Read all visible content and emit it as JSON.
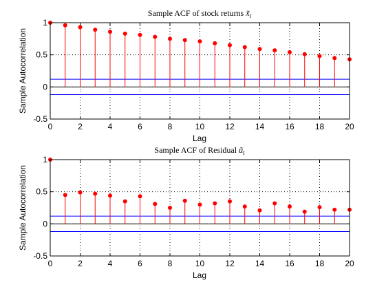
{
  "chart_data": [
    {
      "type": "stem",
      "title": "Sample ACF of stock returns",
      "title_symbol": "x̃",
      "title_subscript": "t",
      "xlabel": "Lag",
      "ylabel": "Sample Autocorrelation",
      "xlim": [
        0,
        20
      ],
      "ylim": [
        -0.5,
        1
      ],
      "xticks": [
        "0",
        "2",
        "4",
        "6",
        "8",
        "10",
        "12",
        "14",
        "16",
        "18",
        "20"
      ],
      "yticks": [
        "-0.5",
        "0",
        "0.5",
        "1"
      ],
      "grid": true,
      "grid_style": "dotted",
      "x": [
        0,
        1,
        2,
        3,
        4,
        5,
        6,
        7,
        8,
        9,
        10,
        11,
        12,
        13,
        14,
        15,
        16,
        17,
        18,
        19,
        20
      ],
      "values": [
        1.0,
        0.96,
        0.93,
        0.89,
        0.86,
        0.83,
        0.81,
        0.78,
        0.75,
        0.73,
        0.71,
        0.68,
        0.65,
        0.62,
        0.59,
        0.57,
        0.54,
        0.51,
        0.48,
        0.45,
        0.43
      ],
      "bounds": [
        0.12,
        -0.12
      ],
      "stem_color": "#ff0000",
      "marker_color": "#ff0000",
      "bound_color": "#0000ff",
      "zero_line_color": "#000000"
    },
    {
      "type": "stem",
      "title": "Sample ACF of Residual",
      "title_symbol": "ũ",
      "title_subscript": "t",
      "xlabel": "Lag",
      "ylabel": "Sample Autocorrelation",
      "xlim": [
        0,
        20
      ],
      "ylim": [
        -0.5,
        1
      ],
      "xticks": [
        "0",
        "2",
        "4",
        "6",
        "8",
        "10",
        "12",
        "14",
        "16",
        "18",
        "20"
      ],
      "yticks": [
        "-0.5",
        "0",
        "0.5",
        "1"
      ],
      "grid": true,
      "grid_style": "dotted",
      "x": [
        0,
        1,
        2,
        3,
        4,
        5,
        6,
        7,
        8,
        9,
        10,
        11,
        12,
        13,
        14,
        15,
        16,
        17,
        18,
        19,
        20
      ],
      "values": [
        1.0,
        0.45,
        0.49,
        0.47,
        0.44,
        0.35,
        0.43,
        0.31,
        0.25,
        0.36,
        0.3,
        0.32,
        0.35,
        0.27,
        0.21,
        0.32,
        0.27,
        0.19,
        0.26,
        0.22,
        0.22
      ],
      "bounds": [
        0.12,
        -0.12
      ],
      "stem_color": "#ff0000",
      "marker_color": "#ff0000",
      "bound_color": "#0000ff",
      "zero_line_color": "#000000"
    }
  ]
}
